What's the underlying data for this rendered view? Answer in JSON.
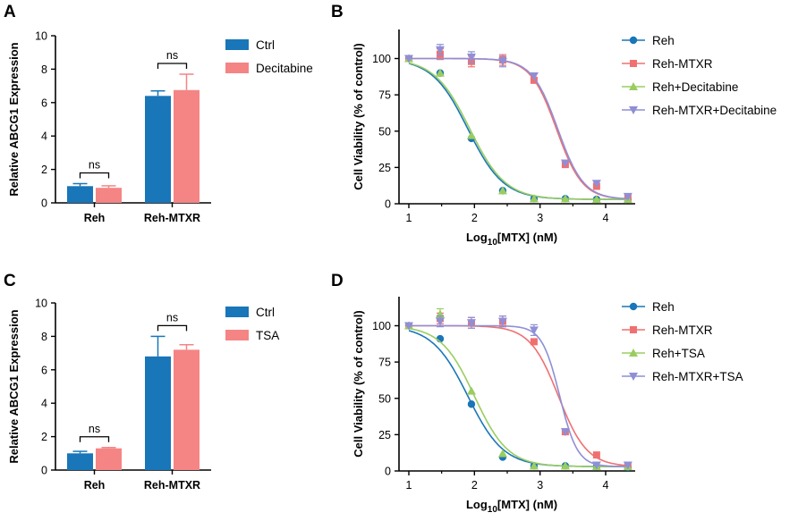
{
  "chart_data": [
    {
      "panel": "A",
      "type": "bar",
      "ylabel": "Relative ABCG1 Expression",
      "xlabel": "",
      "ylim": [
        0,
        10
      ],
      "yticks": [
        0,
        2,
        4,
        6,
        8,
        10
      ],
      "categories": [
        "Reh",
        "Reh-MTXR"
      ],
      "series": [
        {
          "name": "Ctrl",
          "color": "#1976b8",
          "values": [
            1.0,
            6.4
          ],
          "errors": [
            0.15,
            0.3
          ]
        },
        {
          "name": "Decitabine",
          "color": "#f48584",
          "values": [
            0.9,
            6.75
          ],
          "errors": [
            0.12,
            0.95
          ]
        }
      ],
      "annotations": [
        "ns",
        "ns"
      ]
    },
    {
      "panel": "B",
      "type": "line",
      "ylabel": "Cell Viability (% of control)",
      "xlabel": {
        "pre": "Log",
        "sub": "10",
        "post": "[MTX] (nM)"
      },
      "xlim": [
        0.85,
        4.45
      ],
      "ylim": [
        0,
        120
      ],
      "xticks": [
        1,
        2,
        3,
        4
      ],
      "yticks": [
        0,
        25,
        50,
        75,
        100
      ],
      "x": [
        1,
        1.477,
        1.954,
        2.431,
        2.908,
        3.385,
        3.862,
        4.339
      ],
      "series": [
        {
          "name": "Reh",
          "color": "#1976b8",
          "marker": "circle",
          "values": [
            100,
            90,
            45,
            9,
            3.5,
            3.5,
            3,
            3
          ],
          "fit": {
            "top": 100,
            "bottom": 3,
            "ic50": 1.9,
            "hill": 1.6
          }
        },
        {
          "name": "Reh-MTXR",
          "color": "#f07070",
          "marker": "square",
          "values": [
            100,
            103,
            98,
            99,
            85,
            27,
            12,
            4
          ],
          "fit": {
            "top": 100,
            "bottom": 3,
            "ic50": 3.25,
            "hill": 2.2
          }
        },
        {
          "name": "Reh+Decitabine",
          "color": "#9acd61",
          "marker": "triangle-up",
          "values": [
            100,
            90,
            47,
            9,
            3.5,
            3.5,
            3,
            3
          ],
          "fit": {
            "top": 100,
            "bottom": 3,
            "ic50": 1.93,
            "hill": 1.6
          }
        },
        {
          "name": "Reh-MTXR+Decitabine",
          "color": "#8f8fd6",
          "marker": "triangle-down",
          "values": [
            100,
            106,
            101,
            98,
            88,
            28,
            14,
            5
          ],
          "fit": {
            "top": 100,
            "bottom": 3,
            "ic50": 3.27,
            "hill": 2.2
          }
        }
      ]
    },
    {
      "panel": "C",
      "type": "bar",
      "ylabel": "Relative ABCG1 Expression",
      "xlabel": "",
      "ylim": [
        0,
        10
      ],
      "yticks": [
        0,
        2,
        4,
        6,
        8,
        10
      ],
      "categories": [
        "Reh",
        "Reh-MTXR"
      ],
      "series": [
        {
          "name": "Ctrl",
          "color": "#1976b8",
          "values": [
            1.0,
            6.8
          ],
          "errors": [
            0.12,
            1.2
          ]
        },
        {
          "name": "TSA",
          "color": "#f48584",
          "values": [
            1.3,
            7.2
          ],
          "errors": [
            0.05,
            0.3
          ]
        }
      ],
      "annotations": [
        "ns",
        "ns"
      ]
    },
    {
      "panel": "D",
      "type": "line",
      "ylabel": "Cell Viability (% of control)",
      "xlabel": {
        "pre": "Log",
        "sub": "10",
        "post": "[MTX] (nM)"
      },
      "xlim": [
        0.85,
        4.45
      ],
      "ylim": [
        0,
        120
      ],
      "xticks": [
        1,
        2,
        3,
        4
      ],
      "yticks": [
        0,
        25,
        50,
        75,
        100
      ],
      "x": [
        1,
        1.477,
        1.954,
        2.431,
        2.908,
        3.385,
        3.862,
        4.339
      ],
      "series": [
        {
          "name": "Reh",
          "color": "#1976b8",
          "marker": "circle",
          "values": [
            100,
            91,
            46,
            9.5,
            3.5,
            3.5,
            3,
            2.5
          ],
          "fit": {
            "top": 100,
            "bottom": 3,
            "ic50": 1.9,
            "hill": 1.6
          }
        },
        {
          "name": "Reh-MTXR",
          "color": "#f07070",
          "marker": "square",
          "values": [
            100,
            105,
            102,
            103,
            89,
            27,
            11,
            4
          ],
          "fit": {
            "top": 100,
            "bottom": 3,
            "ic50": 3.28,
            "hill": 2.0
          }
        },
        {
          "name": "Reh+TSA",
          "color": "#9acd61",
          "marker": "triangle-up",
          "values": [
            100,
            108,
            55,
            12,
            3.5,
            3.5,
            3,
            3
          ],
          "fit": {
            "top": 100,
            "bottom": 3,
            "ic50": 2.0,
            "hill": 1.7
          }
        },
        {
          "name": "Reh-MTXR+TSA",
          "color": "#8f8fd6",
          "marker": "triangle-down",
          "values": [
            100,
            103,
            102,
            103,
            97,
            27,
            4,
            4
          ],
          "fit": {
            "top": 100,
            "bottom": 3,
            "ic50": 3.3,
            "hill": 3.2
          }
        }
      ]
    }
  ]
}
